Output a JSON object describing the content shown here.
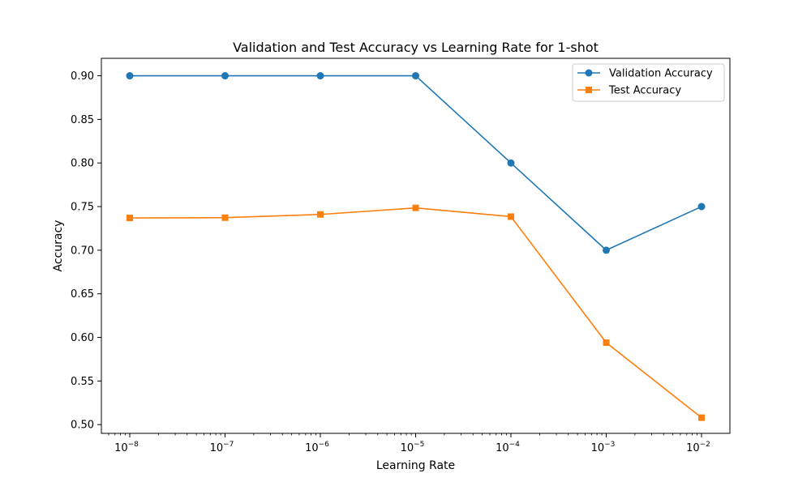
{
  "chart_data": {
    "type": "line",
    "title": "Validation and Test Accuracy vs Learning Rate for 1-shot",
    "xlabel": "Learning Rate",
    "ylabel": "Accuracy",
    "x_scale": "log",
    "x": [
      1e-08,
      1e-07,
      1e-06,
      1e-05,
      0.0001,
      0.001,
      0.01
    ],
    "x_tick_labels": [
      {
        "base": "10",
        "exp": "−8"
      },
      {
        "base": "10",
        "exp": "−7"
      },
      {
        "base": "10",
        "exp": "−6"
      },
      {
        "base": "10",
        "exp": "−5"
      },
      {
        "base": "10",
        "exp": "−4"
      },
      {
        "base": "10",
        "exp": "−3"
      },
      {
        "base": "10",
        "exp": "−2"
      }
    ],
    "y_ticks": [
      "0.50",
      "0.55",
      "0.60",
      "0.65",
      "0.70",
      "0.75",
      "0.80",
      "0.85",
      "0.90"
    ],
    "ylim": [
      0.49,
      0.92
    ],
    "grid": false,
    "legend_position": "top-right",
    "series": [
      {
        "name": "Validation Accuracy",
        "color": "#1f77b4",
        "marker": "circle",
        "values": [
          0.9,
          0.9,
          0.9,
          0.9,
          0.8,
          0.7,
          0.75
        ]
      },
      {
        "name": "Test Accuracy",
        "color": "#ff7f0e",
        "marker": "square",
        "values": [
          0.737,
          0.7373,
          0.741,
          0.7485,
          0.7385,
          0.594,
          0.508
        ]
      }
    ]
  }
}
